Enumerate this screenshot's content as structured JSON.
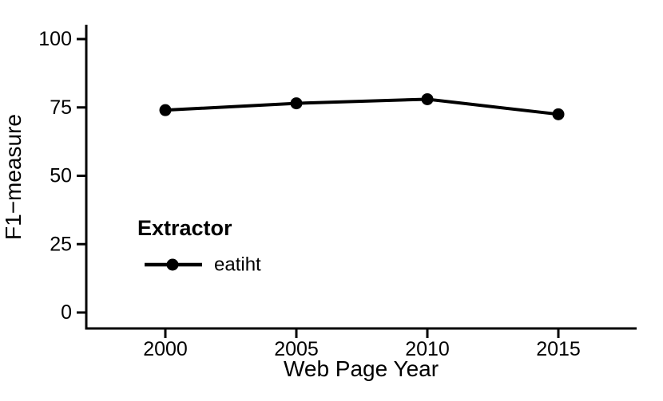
{
  "chart_data": {
    "type": "line",
    "title": "",
    "xlabel": "Web Page Year",
    "ylabel": "F1−measure",
    "x": [
      2000,
      2005,
      2010,
      2015
    ],
    "x_ticks": [
      "2000",
      "2005",
      "2010",
      "2015"
    ],
    "y_ticks": [
      "0",
      "25",
      "50",
      "75",
      "100"
    ],
    "y_tick_values": [
      0,
      25,
      50,
      75,
      100
    ],
    "ylim": [
      0,
      100
    ],
    "grid": false,
    "series": [
      {
        "name": "eatiht",
        "values": [
          74,
          76.5,
          78,
          72.5
        ]
      }
    ],
    "legend": {
      "title": "Extractor",
      "entries": [
        "eatiht"
      ],
      "position": "inside-bottom-left"
    },
    "colors": {
      "line": "#000000",
      "point": "#000000",
      "axis": "#000000",
      "text": "#000000",
      "background": "#ffffff"
    }
  }
}
